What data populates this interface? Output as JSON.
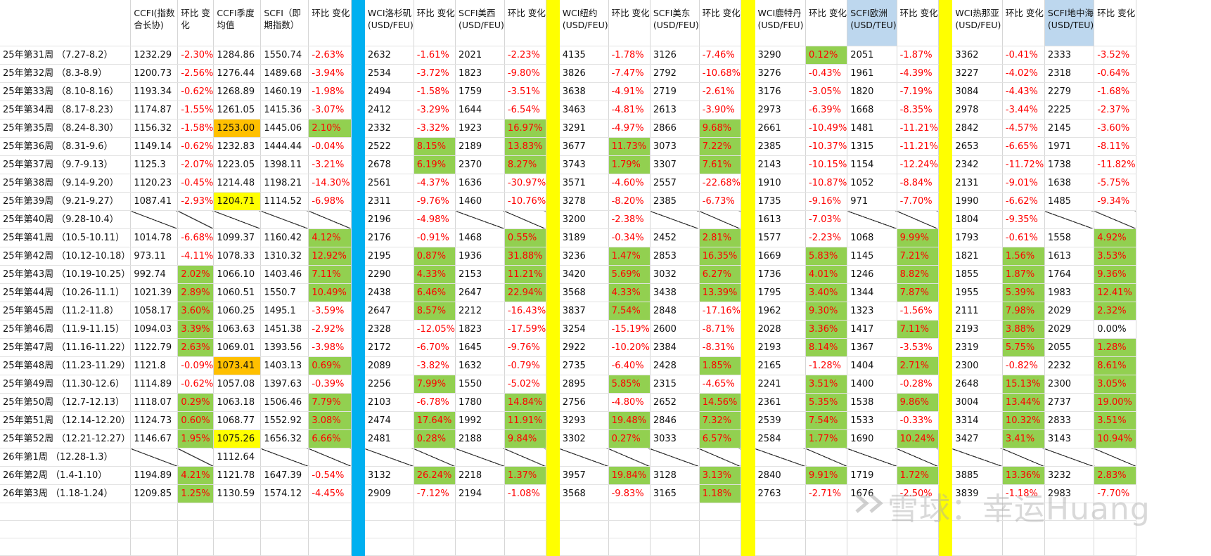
{
  "headers": [
    "",
    "CCFI(指数合长协)",
    "环比 变化",
    "CCFI季度均值",
    "SCFI（即期指数）",
    "环比 变化",
    "",
    "WCI洛杉矶(USD/FEU)",
    "环比 变化",
    "SCFI美西(USD/FEU)",
    "环比 变化",
    "",
    "WCI纽约(USD/FEU)",
    "环比 变化",
    "SCFI美东(USD/FEU)",
    "环比 变化",
    "",
    "WCI鹿特丹(USD/FEU)",
    "环比 变化",
    "SCFI欧洲(USD/TEU)",
    "环比 变化",
    "",
    "WCI热那亚(USD/FEU)",
    "环比 变化",
    "SCFI地中海(USD/TEU)",
    "环比 变化"
  ],
  "colors": {
    "green": "#92d050",
    "orange": "#ffc000",
    "yellow": "#ffff00",
    "blue": "#00b0f0",
    "lightblue": "#bdd7ee",
    "negative": "#ff0000"
  },
  "rows": [
    [
      "25年第31周 （7.27-8.2）",
      "1232.29",
      "-2.30%",
      "1284.86",
      "1550.74",
      "-2.63%",
      "",
      "2632",
      "-1.61%",
      "2021",
      "-2.23%",
      "",
      "4135",
      "-1.78%",
      "3126",
      "-7.46%",
      "",
      "3290",
      "0.12%",
      "2051",
      "-1.87%",
      "",
      "3362",
      "-0.41%",
      "2333",
      "-3.52%"
    ],
    [
      "25年第32周 （8.3-8.9）",
      "1200.73",
      "-2.56%",
      "1276.44",
      "1489.68",
      "-3.94%",
      "",
      "2534",
      "-3.72%",
      "1823",
      "-9.80%",
      "",
      "3826",
      "-7.47%",
      "2792",
      "-10.68%",
      "",
      "3276",
      "-0.43%",
      "1961",
      "-4.39%",
      "",
      "3227",
      "-4.02%",
      "2318",
      "-0.64%"
    ],
    [
      "25年第33周 （8.10-8.16）",
      "1193.34",
      "-0.62%",
      "1268.89",
      "1460.19",
      "-1.98%",
      "",
      "2494",
      "-1.58%",
      "1759",
      "-3.51%",
      "",
      "3638",
      "-4.91%",
      "2719",
      "-2.61%",
      "",
      "3176",
      "-3.05%",
      "1820",
      "-7.19%",
      "",
      "3084",
      "-4.43%",
      "2279",
      "-1.68%"
    ],
    [
      "25年第34周 （8.17-8.23）",
      "1174.87",
      "-1.55%",
      "1261.05",
      "1415.36",
      "-3.07%",
      "",
      "2412",
      "-3.29%",
      "1644",
      "-6.54%",
      "",
      "3463",
      "-4.81%",
      "2613",
      "-3.90%",
      "",
      "2973",
      "-6.39%",
      "1668",
      "-8.35%",
      "",
      "2978",
      "-3.44%",
      "2225",
      "-2.37%"
    ],
    [
      "25年第35周 （8.24-8.30）",
      "1156.32",
      "-1.58%",
      "1253.00",
      "1445.06",
      "2.10%",
      "",
      "2332",
      "-3.32%",
      "1923",
      "16.97%",
      "",
      "3291",
      "-4.97%",
      "2866",
      "9.68%",
      "",
      "2661",
      "-10.49%",
      "1481",
      "-11.21%",
      "",
      "2842",
      "-4.57%",
      "2145",
      "-3.60%"
    ],
    [
      "25年第36周 （8.31-9.6）",
      "1149.14",
      "-0.62%",
      "1232.83",
      "1444.44",
      "-0.04%",
      "",
      "2522",
      "8.15%",
      "2189",
      "13.83%",
      "",
      "3677",
      "11.73%",
      "3073",
      "7.22%",
      "",
      "2385",
      "-10.37%",
      "1315",
      "-11.21%",
      "",
      "2653",
      "-6.65%",
      "1971",
      "-8.11%"
    ],
    [
      "25年第37周 （9.7-9.13）",
      "1125.3",
      "-2.07%",
      "1223.05",
      "1398.11",
      "-3.21%",
      "",
      "2678",
      "6.19%",
      "2370",
      "8.27%",
      "",
      "3743",
      "1.79%",
      "3307",
      "7.61%",
      "",
      "2143",
      "-10.15%",
      "1154",
      "-12.24%",
      "",
      "2342",
      "-11.72%",
      "1738",
      "-11.82%"
    ],
    [
      "25年第38周 （9.14-9.20）",
      "1120.23",
      "-0.45%",
      "1214.48",
      "1198.21",
      "-14.30%",
      "",
      "2561",
      "-4.37%",
      "1636",
      "-30.97%",
      "",
      "3571",
      "-4.60%",
      "2557",
      "-22.68%",
      "",
      "1910",
      "-10.87%",
      "1052",
      "-8.84%",
      "",
      "2131",
      "-9.01%",
      "1638",
      "-5.75%"
    ],
    [
      "25年第39周 （9.21-9.27）",
      "1087.41",
      "-2.93%",
      "1204.71",
      "1114.52",
      "-6.98%",
      "",
      "2311",
      "-9.76%",
      "1460",
      "-10.76%",
      "",
      "3278",
      "-8.20%",
      "2385",
      "-6.73%",
      "",
      "1735",
      "-9.16%",
      "971",
      "-7.70%",
      "",
      "1990",
      "-6.62%",
      "1485",
      "-9.34%"
    ],
    [
      "25年第40周 （9.28-10.4）",
      "",
      "",
      "",
      "",
      "",
      "",
      "2196",
      "-4.98%",
      "",
      "",
      "",
      "3200",
      "-2.38%",
      "",
      "",
      "",
      "1613",
      "-7.03%",
      "",
      "",
      "",
      "1804",
      "-9.35%",
      "",
      ""
    ],
    [
      "25年第41周 （10.5-10.11）",
      "1014.78",
      "-6.68%",
      "1099.37",
      "1160.42",
      "4.12%",
      "",
      "2176",
      "-0.91%",
      "1468",
      "0.55%",
      "",
      "3189",
      "-0.34%",
      "2452",
      "2.81%",
      "",
      "1577",
      "-2.23%",
      "1068",
      "9.99%",
      "",
      "1793",
      "-0.61%",
      "1558",
      "4.92%"
    ],
    [
      "25年第42周 （10.12-10.18）",
      "973.11",
      "-4.11%",
      "1078.33",
      "1310.32",
      "12.92%",
      "",
      "2195",
      "0.87%",
      "1936",
      "31.88%",
      "",
      "3236",
      "1.47%",
      "2853",
      "16.35%",
      "",
      "1669",
      "5.83%",
      "1145",
      "7.21%",
      "",
      "1821",
      "1.56%",
      "1613",
      "3.53%"
    ],
    [
      "25年第43周 （10.19-10.25）",
      "992.74",
      "2.02%",
      "1066.10",
      "1403.46",
      "7.11%",
      "",
      "2290",
      "4.33%",
      "2153",
      "11.21%",
      "",
      "3420",
      "5.69%",
      "3032",
      "6.27%",
      "",
      "1736",
      "4.01%",
      "1246",
      "8.82%",
      "",
      "1855",
      "1.87%",
      "1764",
      "9.36%"
    ],
    [
      "25年第44周 （10.26-11.1）",
      "1021.39",
      "2.89%",
      "1060.51",
      "1550.7",
      "10.49%",
      "",
      "2438",
      "6.46%",
      "2647",
      "22.94%",
      "",
      "3568",
      "4.33%",
      "3438",
      "13.39%",
      "",
      "1795",
      "3.40%",
      "1344",
      "7.87%",
      "",
      "1955",
      "5.39%",
      "1983",
      "12.41%"
    ],
    [
      "25年第45周 （11.2-11.8）",
      "1058.17",
      "3.60%",
      "1060.25",
      "1495.1",
      "-3.59%",
      "",
      "2647",
      "8.57%",
      "2212",
      "-16.43%",
      "",
      "3837",
      "7.54%",
      "2848",
      "-17.16%",
      "",
      "1962",
      "9.30%",
      "1323",
      "-1.56%",
      "",
      "2111",
      "7.98%",
      "2029",
      "2.32%"
    ],
    [
      "25年第46周 （11.9-11.15）",
      "1094.03",
      "3.39%",
      "1063.63",
      "1451.38",
      "-2.92%",
      "",
      "2328",
      "-12.05%",
      "1823",
      "-17.59%",
      "",
      "3254",
      "-15.19%",
      "2600",
      "-8.71%",
      "",
      "2028",
      "3.36%",
      "1417",
      "7.11%",
      "",
      "2193",
      "3.88%",
      "2029",
      "0.00%"
    ],
    [
      "25年第47周 （11.16-11.22）",
      "1122.79",
      "2.63%",
      "1069.01",
      "1393.56",
      "-3.98%",
      "",
      "2172",
      "-6.70%",
      "1645",
      "-9.76%",
      "",
      "2922",
      "-10.20%",
      "2384",
      "-8.31%",
      "",
      "2193",
      "8.14%",
      "1367",
      "-3.53%",
      "",
      "2319",
      "5.75%",
      "2055",
      "1.28%"
    ],
    [
      "25年第48周 （11.23-11.29）",
      "1121.8",
      "-0.09%",
      "1073.41",
      "1403.13",
      "0.69%",
      "",
      "2089",
      "-3.82%",
      "1632",
      "-0.79%",
      "",
      "2735",
      "-6.40%",
      "2428",
      "1.85%",
      "",
      "2165",
      "-1.28%",
      "1404",
      "2.71%",
      "",
      "2300",
      "-0.82%",
      "2232",
      "8.61%"
    ],
    [
      "25年第49周 （11.30-12.6）",
      "1114.89",
      "-0.62%",
      "1057.08",
      "1397.63",
      "-0.39%",
      "",
      "2256",
      "7.99%",
      "1550",
      "-5.02%",
      "",
      "2895",
      "5.85%",
      "2315",
      "-4.65%",
      "",
      "2241",
      "3.51%",
      "1400",
      "-0.28%",
      "",
      "2648",
      "15.13%",
      "2300",
      "3.05%"
    ],
    [
      "25年第50周 （12.7-12.13）",
      "1118.07",
      "0.29%",
      "1063.18",
      "1506.46",
      "7.79%",
      "",
      "2103",
      "-6.78%",
      "1780",
      "14.84%",
      "",
      "2756",
      "-4.80%",
      "2652",
      "14.56%",
      "",
      "2361",
      "5.35%",
      "1538",
      "9.86%",
      "",
      "3004",
      "13.44%",
      "2737",
      "19.00%"
    ],
    [
      "25年第51周 （12.14-12.20）",
      "1124.73",
      "0.60%",
      "1068.77",
      "1552.92",
      "3.08%",
      "",
      "2474",
      "17.64%",
      "1992",
      "11.91%",
      "",
      "3293",
      "19.48%",
      "2846",
      "7.32%",
      "",
      "2539",
      "7.54%",
      "1533",
      "-0.33%",
      "",
      "3314",
      "10.32%",
      "2833",
      "3.51%"
    ],
    [
      "25年第52周 （12.21-12.27）",
      "1146.67",
      "1.95%",
      "1075.26",
      "1656.32",
      "6.66%",
      "",
      "2481",
      "0.28%",
      "2188",
      "9.84%",
      "",
      "3302",
      "0.27%",
      "3033",
      "6.57%",
      "",
      "2584",
      "1.77%",
      "1690",
      "10.24%",
      "",
      "3427",
      "3.41%",
      "3143",
      "10.94%"
    ],
    [
      "26年第1周 （12.28-1.3）",
      "",
      "",
      "1112.64",
      "",
      "",
      "",
      "",
      "",
      "",
      "",
      "",
      "",
      "",
      "",
      "",
      "",
      "",
      "",
      "",
      "",
      "",
      "",
      "",
      "",
      ""
    ],
    [
      "26年第2周 （1.4-1.10）",
      "1194.89",
      "4.21%",
      "1121.78",
      "1647.39",
      "-0.54%",
      "",
      "3132",
      "26.24%",
      "2218",
      "1.37%",
      "",
      "3957",
      "19.84%",
      "3128",
      "3.13%",
      "",
      "2840",
      "9.91%",
      "1719",
      "1.72%",
      "",
      "3885",
      "13.36%",
      "3232",
      "2.83%"
    ],
    [
      "26年第3周 （1.18-1.24）",
      "1209.85",
      "1.25%",
      "1130.59",
      "1574.12",
      "-4.45%",
      "",
      "2909",
      "-7.12%",
      "2194",
      "-1.08%",
      "",
      "3568",
      "-9.83%",
      "3165",
      "1.18%",
      "",
      "2763",
      "-2.71%",
      "1676",
      "-2.50%",
      "",
      "3839",
      "-1.18%",
      "2983",
      "-7.70%"
    ]
  ],
  "watermark": "雪球：幸运Huang"
}
